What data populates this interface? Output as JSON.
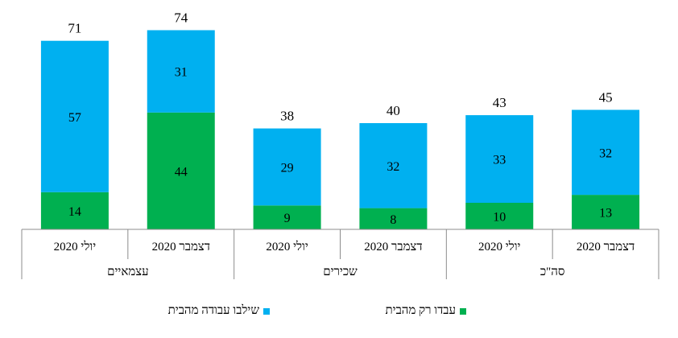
{
  "chart_data": {
    "type": "bar",
    "stacked": true,
    "groups": [
      {
        "label": "עצמאיים",
        "categories": [
          "יולי 2020",
          "דצמבר 2020"
        ]
      },
      {
        "label": "שכירים",
        "categories": [
          "יולי 2020",
          "דצמבר 2020"
        ]
      },
      {
        "label": "סה\"כ",
        "categories": [
          "יולי 2020",
          "דצמבר 2020"
        ]
      }
    ],
    "categories": [
      "יולי 2020",
      "דצמבר 2020",
      "יולי 2020",
      "דצמבר 2020",
      "יולי 2020",
      "דצמבר 2020"
    ],
    "series": [
      {
        "name": "עבדו רק מהבית",
        "color": "#00b050",
        "values": [
          14,
          44,
          9,
          8,
          10,
          13
        ]
      },
      {
        "name": "שילבו עבודה מהבית",
        "color": "#00b0f0",
        "values": [
          57,
          31,
          29,
          32,
          33,
          32
        ]
      }
    ],
    "totals": [
      71,
      74,
      38,
      40,
      43,
      45
    ],
    "ylim": [
      0,
      80
    ],
    "grid": false,
    "legend_position": "bottom"
  },
  "legend": [
    {
      "label": "שילבו עבודה מהבית",
      "color": "#00b0f0"
    },
    {
      "label": "עבדו רק מהבית",
      "color": "#00b050"
    }
  ]
}
